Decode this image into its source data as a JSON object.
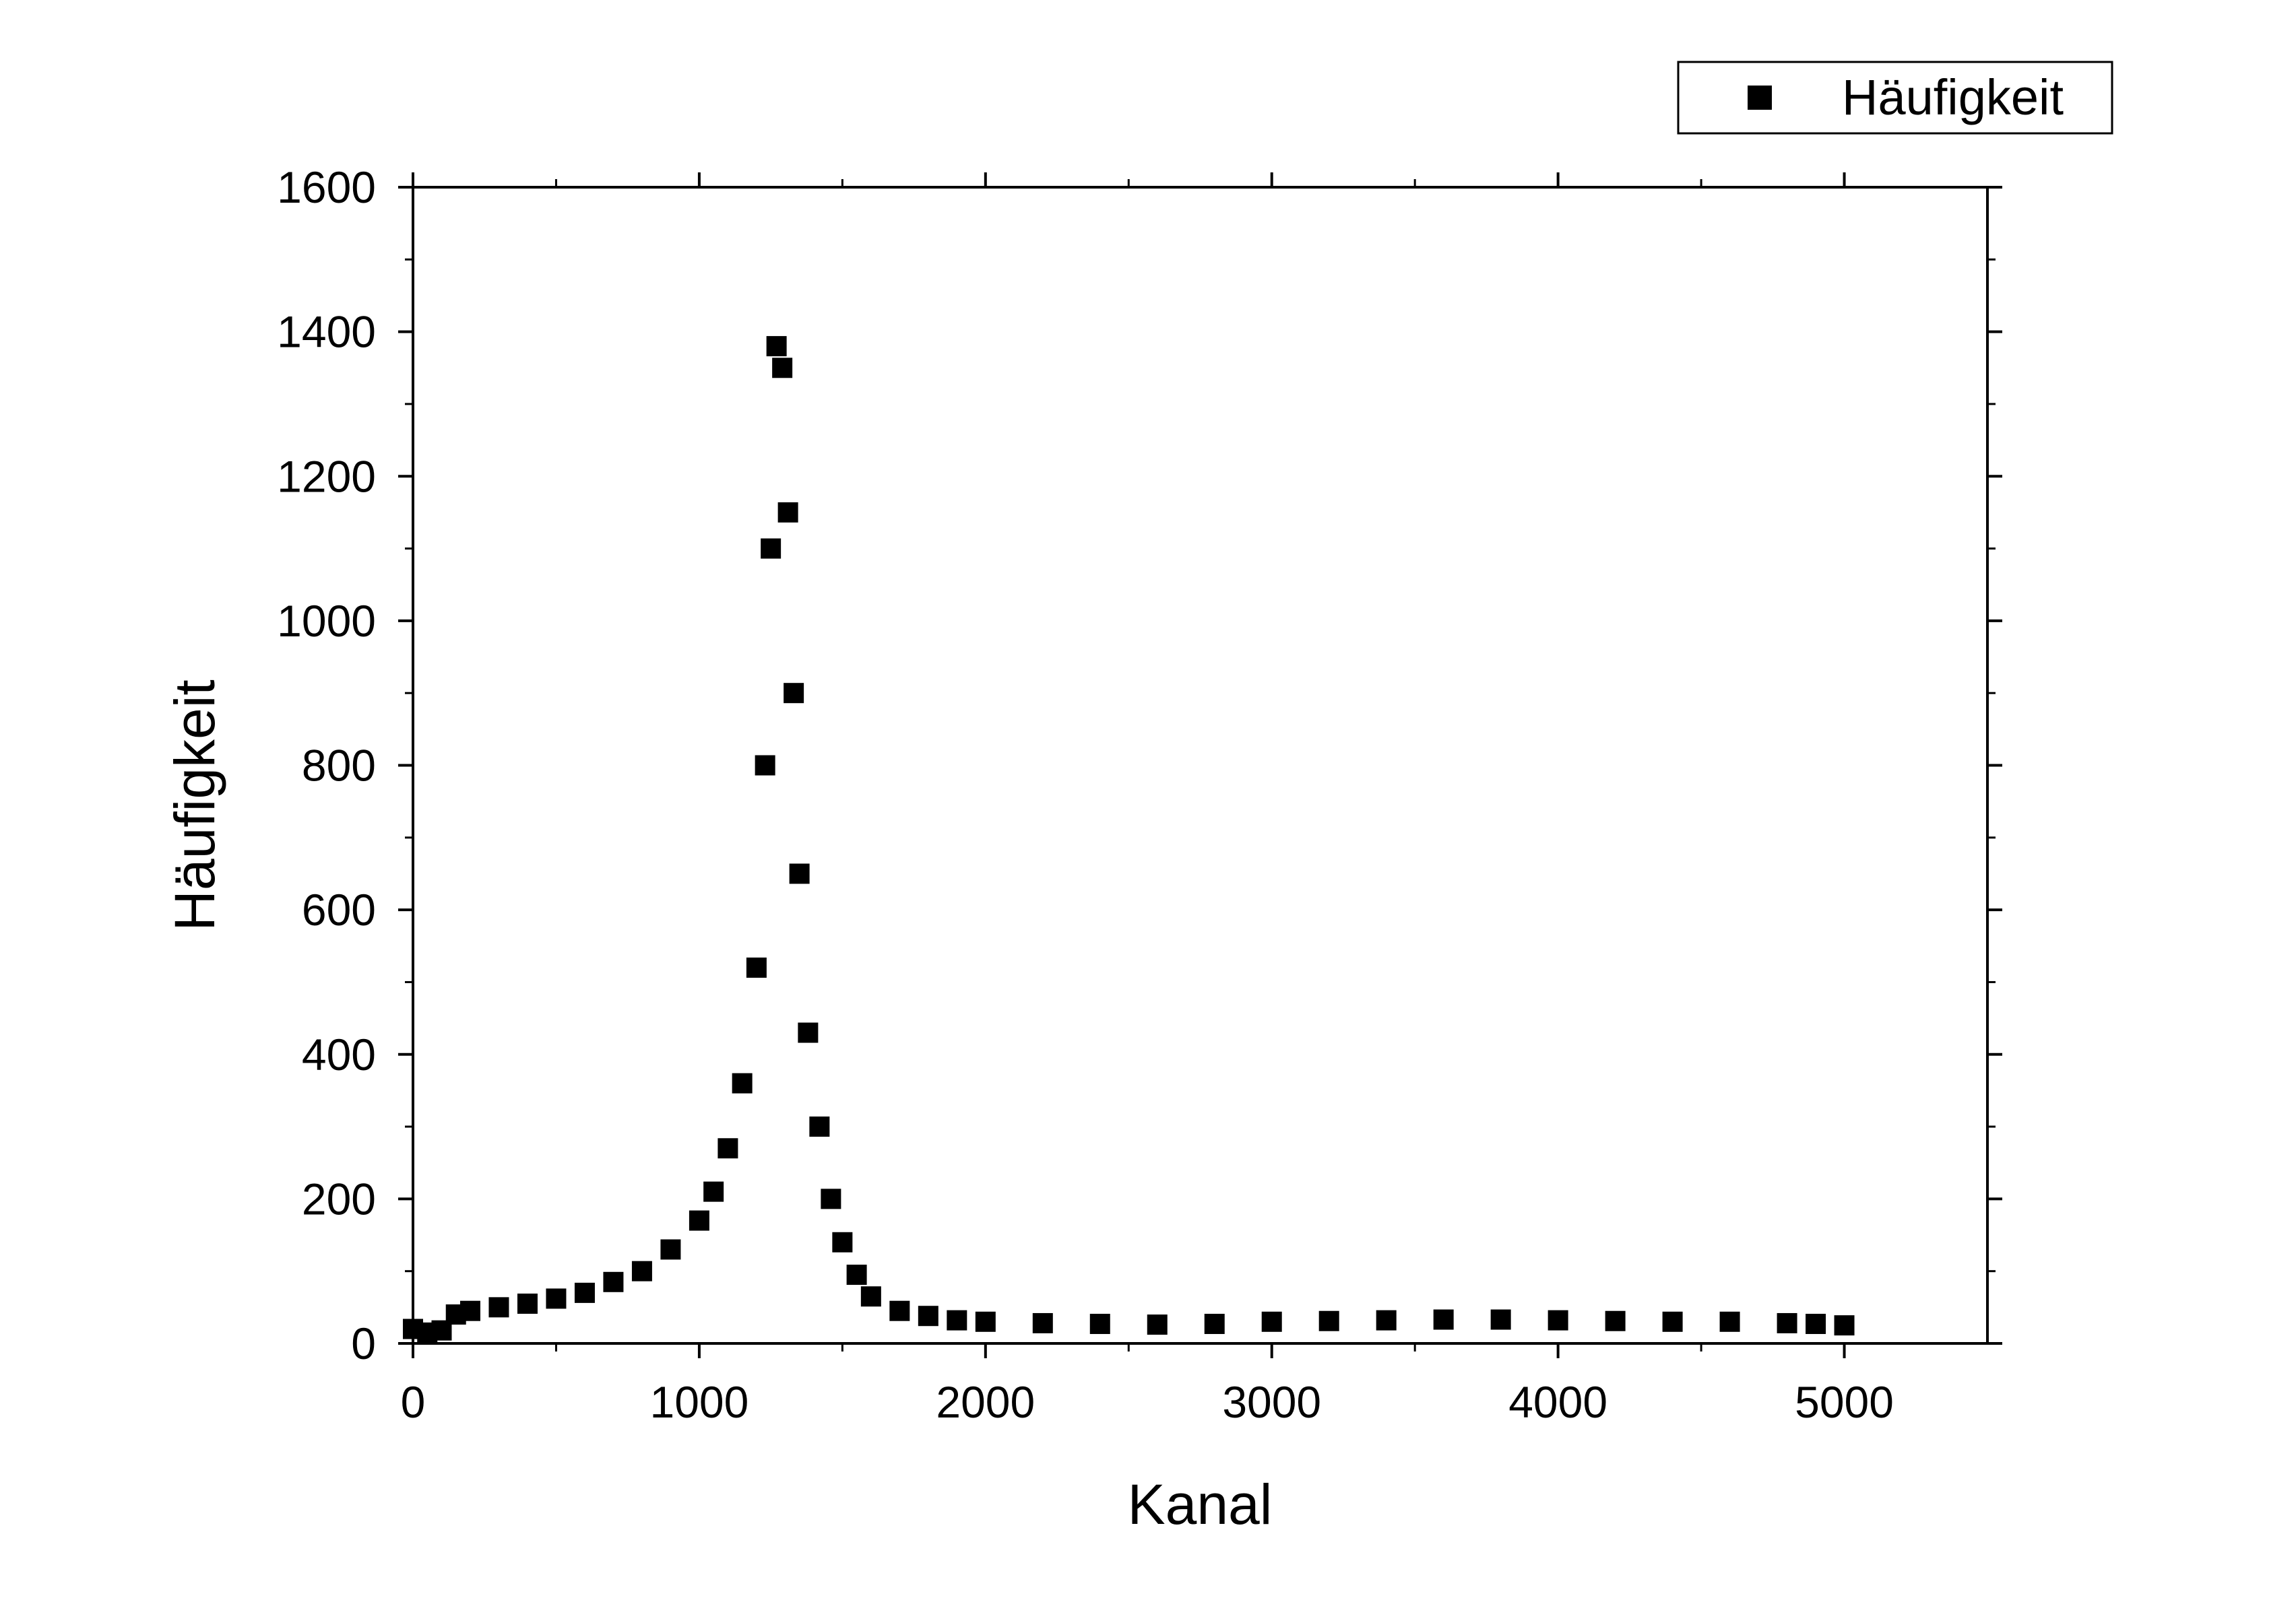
{
  "chart_data": {
    "type": "scatter",
    "xlabel": "Kanal",
    "ylabel": "Häufigkeit",
    "xlim": [
      0,
      5500
    ],
    "ylim": [
      0,
      1600
    ],
    "x_ticks": [
      0,
      1000,
      2000,
      3000,
      4000,
      5000
    ],
    "y_ticks": [
      0,
      200,
      400,
      600,
      800,
      1000,
      1200,
      1400,
      1600
    ],
    "x_minor_step": 500,
    "y_minor_step": 100,
    "grid": false,
    "legend": {
      "position": "top-right",
      "entries": [
        "Häufigkeit"
      ]
    },
    "marker": {
      "shape": "square",
      "color": "#000000"
    },
    "series": [
      {
        "name": "Häufigkeit",
        "x": [
          0,
          50,
          100,
          150,
          200,
          300,
          400,
          500,
          600,
          700,
          800,
          900,
          1000,
          1050,
          1100,
          1150,
          1200,
          1230,
          1250,
          1270,
          1290,
          1310,
          1330,
          1350,
          1380,
          1420,
          1460,
          1500,
          1550,
          1600,
          1700,
          1800,
          1900,
          2000,
          2200,
          2400,
          2600,
          2800,
          3000,
          3200,
          3400,
          3600,
          3800,
          4000,
          4200,
          4400,
          4600,
          4800,
          4900,
          5000
        ],
        "y": [
          20,
          15,
          18,
          40,
          45,
          50,
          55,
          62,
          70,
          85,
          100,
          130,
          170,
          210,
          270,
          360,
          520,
          800,
          1100,
          1380,
          1350,
          1150,
          900,
          650,
          430,
          300,
          200,
          140,
          95,
          65,
          45,
          38,
          32,
          30,
          28,
          27,
          26,
          27,
          30,
          31,
          32,
          33,
          33,
          32,
          31,
          30,
          30,
          28,
          27,
          25
        ]
      }
    ]
  }
}
